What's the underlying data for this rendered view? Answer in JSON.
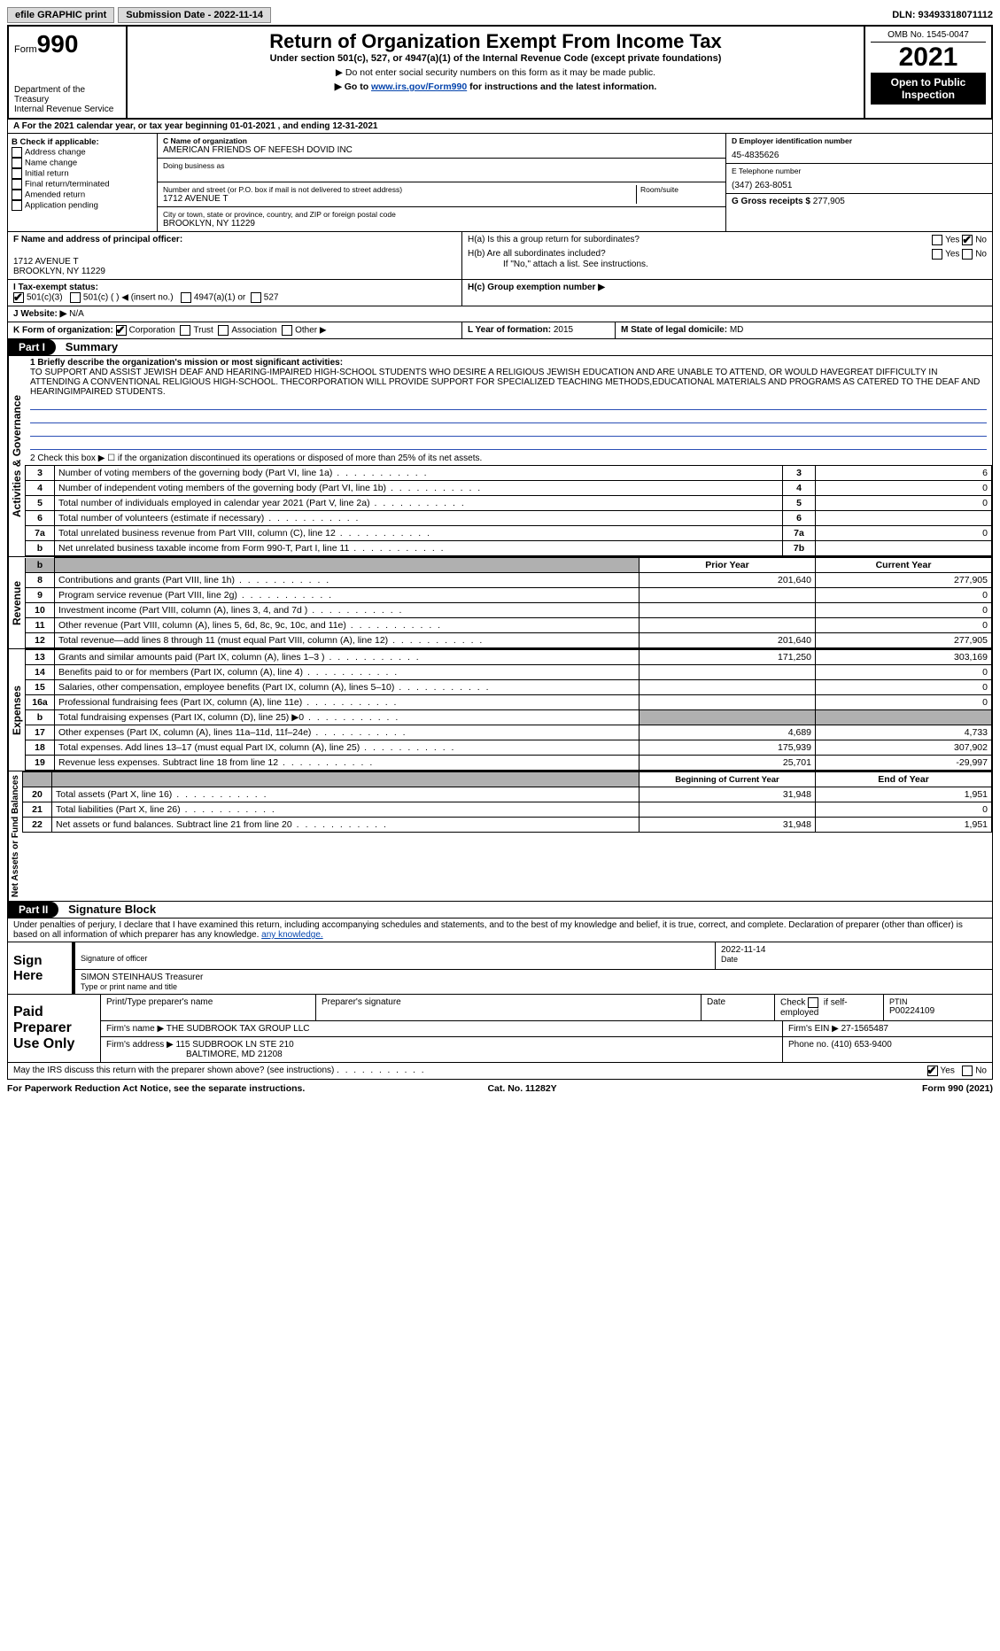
{
  "topbar": {
    "efile": "efile GRAPHIC print",
    "submission_label": "Submission Date - 2022-11-14",
    "dln": "DLN: 93493318071112"
  },
  "header": {
    "form_label": "Form",
    "form_number": "990",
    "dept1": "Department of the Treasury",
    "dept2": "Internal Revenue Service",
    "title": "Return of Organization Exempt From Income Tax",
    "subtitle": "Under section 501(c), 527, or 4947(a)(1) of the Internal Revenue Code (except private foundations)",
    "note1": "▶ Do not enter social security numbers on this form as it may be made public.",
    "note2_pre": "▶ Go to ",
    "note2_link": "www.irs.gov/Form990",
    "note2_post": " for instructions and the latest information.",
    "omb": "OMB No. 1545-0047",
    "year": "2021",
    "open": "Open to Public Inspection"
  },
  "sectionA": "A For the 2021 calendar year, or tax year beginning 01-01-2021     , and ending 12-31-2021",
  "colB": {
    "title": "B Check if applicable:",
    "items": [
      "Address change",
      "Name change",
      "Initial return",
      "Final return/terminated",
      "Amended return",
      "Application pending"
    ]
  },
  "colC": {
    "name_lbl": "C Name of organization",
    "name": "AMERICAN FRIENDS OF NEFESH DOVID INC",
    "dba_lbl": "Doing business as",
    "street_lbl": "Number and street (or P.O. box if mail is not delivered to street address)",
    "room_lbl": "Room/suite",
    "street": "1712 AVENUE T",
    "city_lbl": "City or town, state or province, country, and ZIP or foreign postal code",
    "city": "BROOKLYN, NY  11229"
  },
  "colD": {
    "ein_lbl": "D Employer identification number",
    "ein": "45-4835626",
    "phone_lbl": "E Telephone number",
    "phone": "(347) 263-8051",
    "gross_lbl": "G Gross receipts $",
    "gross": "277,905"
  },
  "rowF": {
    "lbl": "F  Name and address of principal officer:",
    "addr1": "1712 AVENUE T",
    "addr2": "BROOKLYN, NY  11229"
  },
  "rowH": {
    "ha": "H(a)  Is this a group return for subordinates?",
    "hb": "H(b)  Are all subordinates included?",
    "hnote": "If \"No,\" attach a list. See instructions.",
    "hc": "H(c)  Group exemption number ▶",
    "yes": "Yes",
    "no": "No"
  },
  "rowI": {
    "lbl": "I     Tax-exempt status:",
    "o1": "501(c)(3)",
    "o2": "501(c) (   ) ◀ (insert no.)",
    "o3": "4947(a)(1) or",
    "o4": "527"
  },
  "rowJ": {
    "lbl": "J    Website: ▶",
    "val": "N/A"
  },
  "rowK": {
    "lbl": "K Form of organization:",
    "o1": "Corporation",
    "o2": "Trust",
    "o3": "Association",
    "o4": "Other ▶"
  },
  "rowL": {
    "lbl": "L Year of formation:",
    "val": "2015"
  },
  "rowM": {
    "lbl": "M State of legal domicile:",
    "val": "MD"
  },
  "part1": {
    "label": "Part I",
    "title": "Summary"
  },
  "summary": {
    "vlabel_ag": "Activities & Governance",
    "line1_lbl": "1   Briefly describe the organization's mission or most significant activities:",
    "mission": "TO SUPPORT AND ASSIST JEWISH DEAF AND HEARING-IMPAIRED HIGH-SCHOOL STUDENTS WHO DESIRE A RELIGIOUS JEWISH EDUCATION AND ARE UNABLE TO ATTEND, OR WOULD HAVEGREAT DIFFICULTY IN ATTENDING A CONVENTIONAL RELIGIOUS HIGH-SCHOOL. THECORPORATION WILL PROVIDE SUPPORT FOR SPECIALIZED TEACHING METHODS,EDUCATIONAL MATERIALS AND PROGRAMS AS CATERED TO THE DEAF AND HEARINGIMPAIRED STUDENTS.",
    "line2": "2    Check this box ▶ ☐  if the organization discontinued its operations or disposed of more than 25% of its net assets.",
    "rows_ag": [
      {
        "n": "3",
        "d": "Number of voting members of the governing body (Part VI, line 1a)",
        "b": "3",
        "v": "6"
      },
      {
        "n": "4",
        "d": "Number of independent voting members of the governing body (Part VI, line 1b)",
        "b": "4",
        "v": "0"
      },
      {
        "n": "5",
        "d": "Total number of individuals employed in calendar year 2021 (Part V, line 2a)",
        "b": "5",
        "v": "0"
      },
      {
        "n": "6",
        "d": "Total number of volunteers (estimate if necessary)",
        "b": "6",
        "v": ""
      },
      {
        "n": "7a",
        "d": "Total unrelated business revenue from Part VIII, column (C), line 12",
        "b": "7a",
        "v": "0"
      },
      {
        "n": "b",
        "d": "Net unrelated business taxable income from Form 990-T, Part I, line 11",
        "b": "7b",
        "v": ""
      }
    ],
    "hdr_prior": "Prior Year",
    "hdr_current": "Current Year",
    "vlabel_rev": "Revenue",
    "rows_rev": [
      {
        "n": "8",
        "d": "Contributions and grants (Part VIII, line 1h)",
        "p": "201,640",
        "c": "277,905"
      },
      {
        "n": "9",
        "d": "Program service revenue (Part VIII, line 2g)",
        "p": "",
        "c": "0"
      },
      {
        "n": "10",
        "d": "Investment income (Part VIII, column (A), lines 3, 4, and 7d )",
        "p": "",
        "c": "0"
      },
      {
        "n": "11",
        "d": "Other revenue (Part VIII, column (A), lines 5, 6d, 8c, 9c, 10c, and 11e)",
        "p": "",
        "c": "0"
      },
      {
        "n": "12",
        "d": "Total revenue—add lines 8 through 11 (must equal Part VIII, column (A), line 12)",
        "p": "201,640",
        "c": "277,905"
      }
    ],
    "vlabel_exp": "Expenses",
    "rows_exp": [
      {
        "n": "13",
        "d": "Grants and similar amounts paid (Part IX, column (A), lines 1–3 )",
        "p": "171,250",
        "c": "303,169"
      },
      {
        "n": "14",
        "d": "Benefits paid to or for members (Part IX, column (A), line 4)",
        "p": "",
        "c": "0"
      },
      {
        "n": "15",
        "d": "Salaries, other compensation, employee benefits (Part IX, column (A), lines 5–10)",
        "p": "",
        "c": "0"
      },
      {
        "n": "16a",
        "d": "Professional fundraising fees (Part IX, column (A), line 11e)",
        "p": "",
        "c": "0"
      },
      {
        "n": "b",
        "d": "Total fundraising expenses (Part IX, column (D), line 25) ▶0",
        "p": "shade",
        "c": "shade"
      },
      {
        "n": "17",
        "d": "Other expenses (Part IX, column (A), lines 11a–11d, 11f–24e)",
        "p": "4,689",
        "c": "4,733"
      },
      {
        "n": "18",
        "d": "Total expenses. Add lines 13–17 (must equal Part IX, column (A), line 25)",
        "p": "175,939",
        "c": "307,902"
      },
      {
        "n": "19",
        "d": "Revenue less expenses. Subtract line 18 from line 12",
        "p": "25,701",
        "c": "-29,997"
      }
    ],
    "hdr_begin": "Beginning of Current Year",
    "hdr_end": "End of Year",
    "vlabel_na": "Net Assets or Fund Balances",
    "rows_na": [
      {
        "n": "20",
        "d": "Total assets (Part X, line 16)",
        "p": "31,948",
        "c": "1,951"
      },
      {
        "n": "21",
        "d": "Total liabilities (Part X, line 26)",
        "p": "",
        "c": "0"
      },
      {
        "n": "22",
        "d": "Net assets or fund balances. Subtract line 21 from line 20",
        "p": "31,948",
        "c": "1,951"
      }
    ]
  },
  "part2": {
    "label": "Part II",
    "title": "Signature Block"
  },
  "penalties": "Under penalties of perjury, I declare that I have examined this return, including accompanying schedules and statements, and to the best of my knowledge and belief, it is true, correct, and complete. Declaration of preparer (other than officer) is based on all information of which preparer has any knowledge.",
  "sign": {
    "here": "Sign Here",
    "sig_lbl": "Signature of officer",
    "date_lbl": "Date",
    "date": "2022-11-14",
    "name": "SIMON STEINHAUS Treasurer",
    "name_lbl": "Type or print name and title"
  },
  "preparer": {
    "here": "Paid Preparer Use Only",
    "h1": "Print/Type preparer's name",
    "h2": "Preparer's signature",
    "h3": "Date",
    "h4_pre": "Check",
    "h4_post": "if self-employed",
    "h5": "PTIN",
    "ptin": "P00224109",
    "firm_lbl": "Firm's name     ▶",
    "firm": "THE SUDBROOK TAX GROUP LLC",
    "ein_lbl": "Firm's EIN ▶",
    "ein": "27-1565487",
    "addr_lbl": "Firm's address ▶",
    "addr1": "115 SUDBROOK LN STE 210",
    "addr2": "BALTIMORE, MD  21208",
    "phone_lbl": "Phone no.",
    "phone": "(410) 653-9400"
  },
  "discuss": {
    "q": "May the IRS discuss this return with the preparer shown above? (see instructions)",
    "yes": "Yes",
    "no": "No"
  },
  "footer": {
    "left": "For Paperwork Reduction Act Notice, see the separate instructions.",
    "mid": "Cat. No. 11282Y",
    "right": "Form 990 (2021)"
  }
}
